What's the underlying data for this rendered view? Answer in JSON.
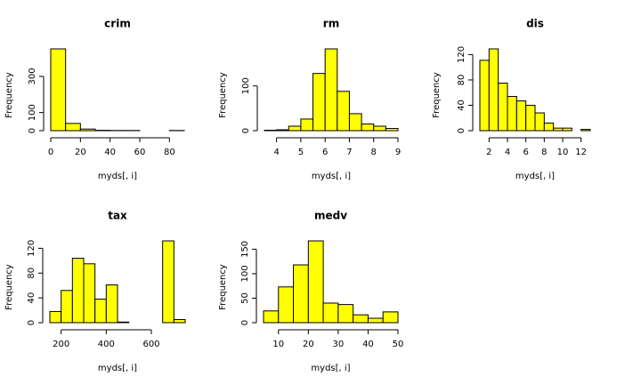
{
  "chart_data": [
    {
      "type": "histogram",
      "title": "crim",
      "xlabel": "myds[, i]",
      "ylabel": "Frequency",
      "color": "#ffff00",
      "bins": [
        0,
        10,
        20,
        30,
        40,
        50,
        60,
        70,
        80,
        90
      ],
      "values": [
        452,
        40,
        9,
        2,
        1,
        1,
        0,
        0,
        1
      ],
      "xlim": [
        0,
        90
      ],
      "xticks": [
        0,
        20,
        40,
        60,
        80
      ],
      "ylim": [
        0,
        452
      ],
      "yticks": [
        0,
        100,
        300
      ]
    },
    {
      "type": "histogram",
      "title": "rm",
      "xlabel": "myds[, i]",
      "ylabel": "Frequency",
      "color": "#ffff00",
      "bins": [
        3.5,
        4,
        4.5,
        5,
        5.5,
        6,
        6.5,
        7,
        7.5,
        8,
        8.5,
        9
      ],
      "values": [
        1,
        2,
        10,
        26,
        128,
        183,
        88,
        38,
        15,
        10,
        5
      ],
      "xlim": [
        3.5,
        9
      ],
      "xticks": [
        4,
        5,
        6,
        7,
        8,
        9
      ],
      "ylim": [
        0,
        183
      ],
      "yticks": [
        0,
        100
      ]
    },
    {
      "type": "histogram",
      "title": "dis",
      "xlabel": "myds[, i]",
      "ylabel": "Frequency",
      "color": "#ffff00",
      "bins": [
        1,
        2,
        3,
        4,
        5,
        6,
        7,
        8,
        9,
        10,
        11,
        12,
        13
      ],
      "values": [
        111,
        129,
        75,
        54,
        47,
        40,
        28,
        12,
        4,
        4,
        0,
        2
      ],
      "xlim": [
        1,
        13
      ],
      "xticks": [
        2,
        4,
        6,
        8,
        10,
        12
      ],
      "ylim": [
        0,
        129
      ],
      "yticks": [
        0,
        40,
        80,
        120
      ]
    },
    {
      "type": "histogram",
      "title": "tax",
      "xlabel": "myds[, i]",
      "ylabel": "Frequency",
      "color": "#ffff00",
      "bins": [
        150,
        200,
        250,
        300,
        350,
        400,
        450,
        500,
        550,
        600,
        650,
        700,
        750
      ],
      "values": [
        18,
        52,
        104,
        95,
        38,
        61,
        1,
        0,
        0,
        0,
        132,
        5
      ],
      "xlim": [
        150,
        750
      ],
      "xticks": [
        200,
        400,
        600
      ],
      "ylim": [
        0,
        132
      ],
      "yticks": [
        0,
        40,
        80,
        120
      ]
    },
    {
      "type": "histogram",
      "title": "medv",
      "xlabel": "myds[, i]",
      "ylabel": "Frequency",
      "color": "#ffff00",
      "bins": [
        5,
        10,
        15,
        20,
        25,
        30,
        35,
        40,
        45,
        50
      ],
      "values": [
        24,
        73,
        118,
        167,
        40,
        37,
        16,
        9,
        22
      ],
      "xlim": [
        5,
        50
      ],
      "xticks": [
        10,
        20,
        30,
        40,
        50
      ],
      "ylim": [
        0,
        167
      ],
      "yticks": [
        0,
        50,
        100,
        150
      ]
    }
  ]
}
